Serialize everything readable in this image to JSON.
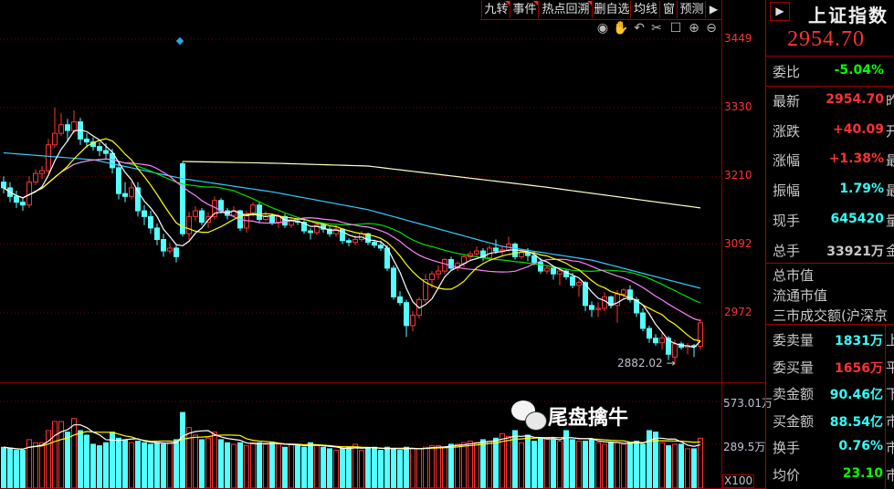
{
  "toolbar": {
    "buttons": [
      "九转",
      "事件",
      "热点回溯",
      "删自选",
      "均线",
      "窗",
      "预测"
    ],
    "icons": [
      "eye-icon",
      "hand-icon",
      "undo-icon",
      "scissors-icon",
      "lock-icon",
      "zoom-in-icon",
      "zoom-out-icon"
    ]
  },
  "chart_data": {
    "type": "candlestick",
    "y_ticks": [
      3449,
      3330,
      3210,
      3092,
      2972
    ],
    "y_tick_labels": [
      "3449",
      "3330",
      "3210",
      "3092",
      "2972"
    ],
    "ylim": [
      2882,
      3449
    ],
    "grid": "dotted horizontal",
    "low_annotation": "2882.02",
    "volume_ticks": [
      "573.01万",
      "289.5万"
    ],
    "volume_scale": "X100",
    "colors": {
      "up": "#ff3232",
      "down": "#54ffff",
      "ma5": "#ffffff",
      "ma10": "#ffff00",
      "ma20": "#ff80ff",
      "ma30": "#00e000",
      "ma60": "#33ccff",
      "ma_long": "#ffffc0"
    },
    "ohlc": [
      [
        3200,
        3210,
        3180,
        3190
      ],
      [
        3190,
        3200,
        3165,
        3175
      ],
      [
        3175,
        3185,
        3155,
        3165
      ],
      [
        3165,
        3172,
        3150,
        3160
      ],
      [
        3160,
        3210,
        3155,
        3200
      ],
      [
        3200,
        3222,
        3195,
        3215
      ],
      [
        3215,
        3228,
        3205,
        3220
      ],
      [
        3220,
        3275,
        3215,
        3265
      ],
      [
        3265,
        3330,
        3260,
        3285
      ],
      [
        3285,
        3320,
        3280,
        3300
      ],
      [
        3300,
        3310,
        3270,
        3290
      ],
      [
        3290,
        3325,
        3285,
        3305
      ],
      [
        3305,
        3312,
        3265,
        3275
      ],
      [
        3275,
        3285,
        3260,
        3270
      ],
      [
        3270,
        3278,
        3255,
        3262
      ],
      [
        3262,
        3270,
        3245,
        3255
      ],
      [
        3255,
        3268,
        3240,
        3250
      ],
      [
        3250,
        3258,
        3215,
        3225
      ],
      [
        3225,
        3235,
        3170,
        3180
      ],
      [
        3180,
        3200,
        3165,
        3175
      ],
      [
        3175,
        3200,
        3170,
        3190
      ],
      [
        3190,
        3200,
        3140,
        3150
      ],
      [
        3150,
        3160,
        3125,
        3140
      ],
      [
        3140,
        3150,
        3110,
        3120
      ],
      [
        3120,
        3128,
        3090,
        3100
      ],
      [
        3100,
        3110,
        3070,
        3080
      ],
      [
        3080,
        3095,
        3075,
        3085
      ],
      [
        3085,
        3092,
        3060,
        3070
      ],
      [
        3232,
        3236,
        3105,
        3110
      ],
      [
        3110,
        3148,
        3100,
        3140
      ],
      [
        3140,
        3158,
        3132,
        3150
      ],
      [
        3150,
        3155,
        3125,
        3130
      ],
      [
        3130,
        3148,
        3120,
        3140
      ],
      [
        3140,
        3175,
        3135,
        3168
      ],
      [
        3168,
        3172,
        3145,
        3150
      ],
      [
        3150,
        3155,
        3135,
        3142
      ],
      [
        3142,
        3158,
        3138,
        3150
      ],
      [
        3150,
        3152,
        3115,
        3120
      ],
      [
        3120,
        3150,
        3112,
        3145
      ],
      [
        3145,
        3165,
        3140,
        3160
      ],
      [
        3160,
        3165,
        3130,
        3135
      ],
      [
        3135,
        3148,
        3132,
        3140
      ],
      [
        3140,
        3145,
        3125,
        3130
      ],
      [
        3130,
        3145,
        3120,
        3140
      ],
      [
        3140,
        3145,
        3120,
        3125
      ],
      [
        3125,
        3140,
        3120,
        3132
      ],
      [
        3132,
        3138,
        3125,
        3130
      ],
      [
        3130,
        3135,
        3110,
        3115
      ],
      [
        3115,
        3120,
        3100,
        3112
      ],
      [
        3112,
        3130,
        3108,
        3125
      ],
      [
        3125,
        3128,
        3112,
        3118
      ],
      [
        3118,
        3122,
        3105,
        3110
      ],
      [
        3110,
        3125,
        3105,
        3118
      ],
      [
        3118,
        3120,
        3092,
        3098
      ],
      [
        3098,
        3102,
        3088,
        3095
      ],
      [
        3095,
        3108,
        3090,
        3100
      ],
      [
        3100,
        3115,
        3096,
        3110
      ],
      [
        3110,
        3112,
        3090,
        3095
      ],
      [
        3095,
        3100,
        3085,
        3090
      ],
      [
        3090,
        3098,
        3080,
        3085
      ],
      [
        3085,
        3090,
        3045,
        3050
      ],
      [
        3050,
        3055,
        2995,
        3000
      ],
      [
        3000,
        3010,
        2985,
        2990
      ],
      [
        2990,
        2995,
        2930,
        2950
      ],
      [
        2950,
        2975,
        2940,
        2968
      ],
      [
        2968,
        3000,
        2962,
        2995
      ],
      [
        2995,
        3040,
        2990,
        3030
      ],
      [
        3030,
        3045,
        3015,
        3040
      ],
      [
        3040,
        3055,
        3030,
        3045
      ],
      [
        3045,
        3068,
        3040,
        3065
      ],
      [
        3065,
        3070,
        3045,
        3050
      ],
      [
        3050,
        3062,
        3045,
        3058
      ],
      [
        3058,
        3075,
        3052,
        3070
      ],
      [
        3070,
        3080,
        3065,
        3075
      ],
      [
        3075,
        3088,
        3070,
        3080
      ],
      [
        3080,
        3085,
        3062,
        3068
      ],
      [
        3068,
        3090,
        3064,
        3085
      ],
      [
        3085,
        3100,
        3075,
        3080
      ],
      [
        3080,
        3090,
        3070,
        3082
      ],
      [
        3082,
        3105,
        3078,
        3092
      ],
      [
        3092,
        3095,
        3065,
        3070
      ],
      [
        3070,
        3082,
        3066,
        3078
      ],
      [
        3078,
        3085,
        3062,
        3072
      ],
      [
        3072,
        3080,
        3055,
        3060
      ],
      [
        3060,
        3068,
        3040,
        3045
      ],
      [
        3045,
        3055,
        3040,
        3050
      ],
      [
        3050,
        3052,
        3030,
        3040
      ],
      [
        3040,
        3050,
        3020,
        3045
      ],
      [
        3045,
        3048,
        3030,
        3035
      ],
      [
        3035,
        3042,
        3015,
        3020
      ],
      [
        3020,
        3030,
        3000,
        3025
      ],
      [
        3025,
        3028,
        2975,
        2985
      ],
      [
        2985,
        2992,
        2965,
        2978
      ],
      [
        2978,
        2990,
        2965,
        2980
      ],
      [
        2980,
        3008,
        2975,
        3000
      ],
      [
        3000,
        3002,
        2980,
        2985
      ],
      [
        2985,
        3012,
        2955,
        3005
      ],
      [
        3005,
        3015,
        2995,
        3012
      ],
      [
        3012,
        3020,
        2990,
        2995
      ],
      [
        2995,
        3000,
        2965,
        2972
      ],
      [
        2972,
        2980,
        2940,
        2945
      ],
      [
        2945,
        2950,
        2920,
        2928
      ],
      [
        2928,
        2935,
        2915,
        2920
      ],
      [
        2920,
        2938,
        2908,
        2928
      ],
      [
        2928,
        2932,
        2890,
        2900
      ],
      [
        2895,
        2925,
        2882.02,
        2918
      ],
      [
        2918,
        2922,
        2908,
        2912
      ],
      [
        2912,
        2920,
        2900,
        2915
      ],
      [
        2915,
        2918,
        2895,
        2914
      ],
      [
        2914,
        2962,
        2908,
        2954.7
      ]
    ],
    "volume": [
      270,
      260,
      250,
      250,
      320,
      300,
      300,
      380,
      440,
      440,
      370,
      460,
      380,
      350,
      290,
      280,
      300,
      370,
      330,
      320,
      300,
      310,
      300,
      290,
      300,
      290,
      300,
      320,
      500,
      400,
      350,
      320,
      330,
      370,
      320,
      300,
      290,
      300,
      280,
      300,
      300,
      290,
      300,
      290,
      270,
      290,
      280,
      270,
      300,
      280,
      270,
      260,
      250,
      260,
      270,
      290,
      250,
      260,
      270,
      250,
      270,
      260,
      250,
      270,
      260,
      260,
      270,
      280,
      280,
      270,
      290,
      290,
      300,
      310,
      300,
      320,
      310,
      330,
      360,
      340,
      380,
      300,
      350,
      310,
      330,
      330,
      320,
      310,
      380,
      320,
      310,
      310,
      320,
      300,
      290,
      300,
      300,
      290,
      300,
      310,
      290,
      380,
      370,
      300,
      280,
      290,
      290,
      260,
      260,
      330
    ],
    "ma60": [
      [
        0,
        3251
      ],
      [
        14,
        3239
      ],
      [
        28,
        3206
      ],
      [
        42,
        3183
      ],
      [
        57,
        3152
      ],
      [
        78,
        3088
      ],
      [
        92,
        3064
      ],
      [
        109,
        3015
      ]
    ],
    "ma_long": [
      [
        28,
        3236
      ],
      [
        42,
        3233
      ],
      [
        57,
        3228
      ],
      [
        85,
        3191
      ],
      [
        109,
        3155
      ]
    ]
  },
  "quote": {
    "title": "上证指数",
    "price": "2954.70",
    "rows1": [
      {
        "label": "委比",
        "value": "-5.04%",
        "color": "#00ff00",
        "cut": ""
      }
    ],
    "rows2": [
      {
        "label": "最新",
        "value": "2954.70",
        "color": "#ff3232",
        "cut": "昨"
      },
      {
        "label": "涨跌",
        "value": "+40.09",
        "color": "#ff3232",
        "cut": "开"
      },
      {
        "label": "涨幅",
        "value": "+1.38%",
        "color": "#ff3232",
        "cut": "最"
      },
      {
        "label": "振幅",
        "value": "1.79%",
        "color": "#33ffff",
        "cut": "最"
      },
      {
        "label": "现手",
        "value": "645420",
        "color": "#33ffff",
        "cut": "量"
      },
      {
        "label": "总手",
        "value": "33921万",
        "color": "#c8c8c8",
        "cut": "金"
      }
    ],
    "rows3": [
      "总市值",
      "流通市值",
      "三市成交额(沪深京"
    ],
    "rows4": [
      {
        "label": "委卖量",
        "value": "1831万",
        "color": "#33ffff",
        "cut": "上"
      },
      {
        "label": "委买量",
        "value": "1656万",
        "color": "#ff3232",
        "cut": "平"
      },
      {
        "label": "卖金额",
        "value": "90.46亿",
        "color": "#33ffff",
        "cut": "下"
      },
      {
        "label": "买金额",
        "value": "88.54亿",
        "color": "#33ffff",
        "cut": "市"
      },
      {
        "label": "换手",
        "value": "0.76%",
        "color": "#33ffff",
        "cut": "市"
      },
      {
        "label": "均价",
        "value": "23.10",
        "color": "#00ff00",
        "cut": "市"
      }
    ]
  },
  "watermark": "尾盘擒牛"
}
